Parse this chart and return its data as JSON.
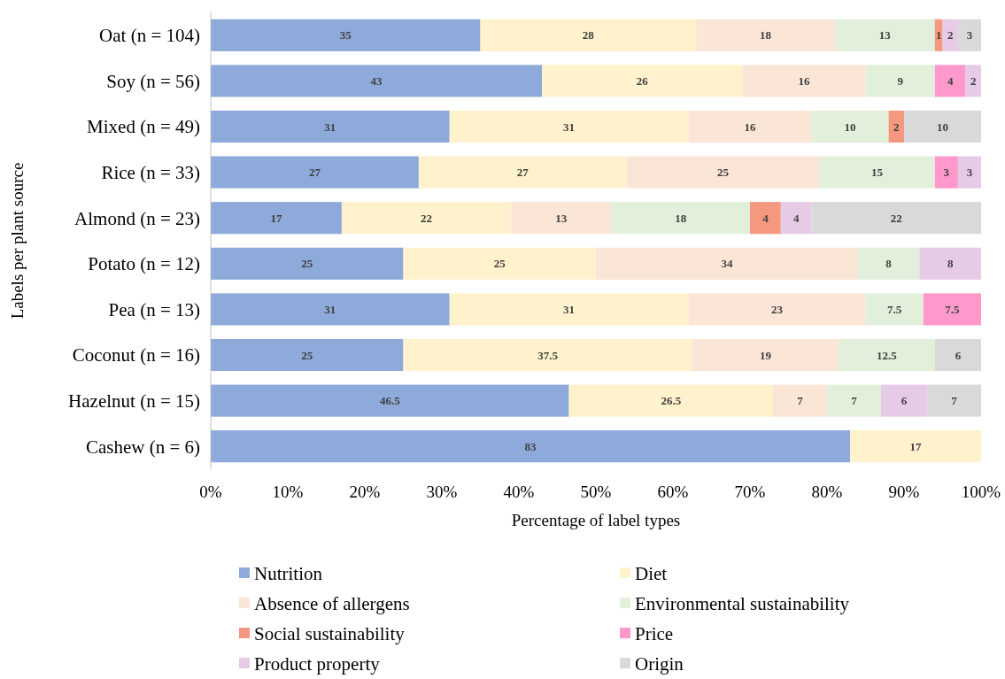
{
  "chart_data": {
    "type": "bar",
    "orientation": "horizontal",
    "stacked": true,
    "data_labels": true,
    "legend": "bottom",
    "grid": false,
    "xlabel": "Percentage of label types",
    "ylabel": "Labels per plant source",
    "categories": [
      "Oat (n = 104)",
      "Soy (n = 56)",
      "Mixed (n = 49)",
      "Rice (n = 33)",
      "Almond (n = 23)",
      "Potato (n = 12)",
      "Pea (n = 13)",
      "Coconut (n = 16)",
      "Hazelnut (n = 15)",
      "Cashew (n = 6)"
    ],
    "xlim": [
      0,
      100
    ],
    "xticks": [
      {
        "value": 0,
        "label": "0%"
      },
      {
        "value": 10,
        "label": "10%"
      },
      {
        "value": 20,
        "label": "20%"
      },
      {
        "value": 30,
        "label": "30%"
      },
      {
        "value": 40,
        "label": "40%"
      },
      {
        "value": 50,
        "label": "50%"
      },
      {
        "value": 60,
        "label": "60%"
      },
      {
        "value": 70,
        "label": "70%"
      },
      {
        "value": 80,
        "label": "80%"
      },
      {
        "value": 90,
        "label": "90%"
      },
      {
        "value": 100,
        "label": "100%"
      }
    ],
    "series": [
      {
        "name": "Nutrition",
        "color": "#8eaadb",
        "values": [
          35,
          43,
          31,
          27,
          17,
          25,
          31,
          25,
          46.5,
          83
        ]
      },
      {
        "name": "Diet",
        "color": "#fff2cc",
        "values": [
          28,
          26,
          31,
          27,
          22,
          25,
          31,
          37.5,
          26.5,
          17
        ]
      },
      {
        "name": "Absence of allergens",
        "color": "#fbe5d6",
        "values": [
          18,
          16,
          16,
          25,
          13,
          34,
          23,
          19,
          7,
          null
        ]
      },
      {
        "name": "Environmental sustainability",
        "color": "#e2efda",
        "values": [
          13,
          9,
          10,
          15,
          18,
          8,
          7.5,
          12.5,
          7,
          null
        ]
      },
      {
        "name": "Social sustainability",
        "color": "#f4987f",
        "values": [
          1,
          null,
          2,
          null,
          4,
          null,
          null,
          null,
          null,
          null
        ]
      },
      {
        "name": "Price",
        "color": "#ff99cc",
        "values": [
          null,
          4,
          null,
          3,
          null,
          null,
          7.5,
          null,
          null,
          null
        ]
      },
      {
        "name": "Product property",
        "color": "#e6cbe6",
        "values": [
          2,
          2,
          null,
          3,
          4,
          8,
          null,
          null,
          6,
          null
        ]
      },
      {
        "name": "Origin",
        "color": "#d9d9d9",
        "values": [
          3,
          null,
          10,
          null,
          22,
          null,
          null,
          6,
          7,
          null
        ]
      }
    ]
  }
}
